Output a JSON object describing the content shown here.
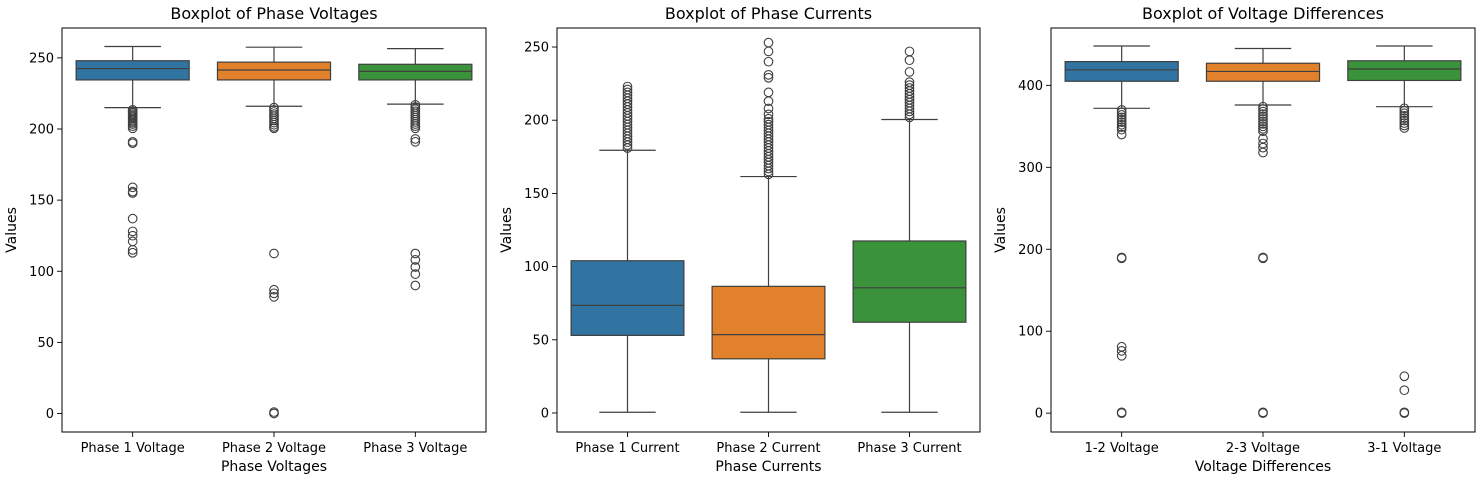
{
  "chart_data": [
    {
      "type": "boxplot",
      "title": "Boxplot of Phase Voltages",
      "xlabel": "Phase Voltages",
      "ylabel": "Values",
      "ylim": [
        -13,
        271
      ],
      "yticks": [
        0,
        50,
        100,
        150,
        200,
        250
      ],
      "grid": false,
      "categories": [
        "Phase 1 Voltage",
        "Phase 2 Voltage",
        "Phase 3 Voltage"
      ],
      "colors": [
        "#3274a1",
        "#e1812c",
        "#3a923a"
      ],
      "boxes": [
        {
          "whislo": 215,
          "q1": 234.5,
          "med": 242.5,
          "q3": 248,
          "whishi": 258,
          "fliers": [
            213.5,
            212.5,
            211.5,
            210.5,
            209.5,
            208.5,
            207.5,
            206.5,
            205.5,
            204.5,
            203.5,
            202,
            200.5,
            191,
            190,
            159,
            156,
            155,
            137,
            128,
            125,
            121,
            115,
            113
          ]
        },
        {
          "whislo": 216,
          "q1": 234.5,
          "med": 241.5,
          "q3": 247,
          "whishi": 257.5,
          "fliers": [
            215,
            213.5,
            212,
            210.5,
            209,
            207.5,
            206,
            204.5,
            203,
            201.5,
            200.5,
            112.5,
            87,
            84.5,
            82,
            1,
            0
          ]
        },
        {
          "whislo": 217.5,
          "q1": 234.5,
          "med": 240.5,
          "q3": 245.5,
          "whishi": 256.5,
          "fliers": [
            217,
            215.5,
            214,
            212.5,
            211,
            209.5,
            208,
            206.5,
            205,
            203.5,
            202,
            200.5,
            193,
            191,
            112.5,
            108,
            103,
            98,
            90
          ]
        }
      ]
    },
    {
      "type": "boxplot",
      "title": "Boxplot of Phase Currents",
      "xlabel": "Phase Currents",
      "ylabel": "Values",
      "ylim": [
        -13,
        263
      ],
      "yticks": [
        0,
        50,
        100,
        150,
        200,
        250
      ],
      "grid": false,
      "categories": [
        "Phase 1 Current",
        "Phase 2 Current",
        "Phase 3 Current"
      ],
      "colors": [
        "#3274a1",
        "#e1812c",
        "#3a923a"
      ],
      "boxes": [
        {
          "whislo": 0.5,
          "q1": 53,
          "med": 73.5,
          "q3": 104,
          "whishi": 179.5,
          "fliers": [
            181,
            183,
            185,
            187,
            189,
            191,
            193,
            195,
            197,
            199,
            201,
            203,
            205,
            207,
            209,
            211,
            213,
            215,
            217,
            219,
            221,
            223
          ]
        },
        {
          "whislo": 0.5,
          "q1": 37,
          "med": 53.5,
          "q3": 86.5,
          "whishi": 161.5,
          "fliers": [
            163,
            165,
            167,
            169,
            171,
            173,
            175,
            177,
            179,
            181,
            183,
            185,
            187,
            189,
            191,
            193,
            195,
            197,
            199,
            201,
            204,
            208,
            213,
            219,
            229,
            231,
            240,
            247,
            253
          ]
        },
        {
          "whislo": 0.5,
          "q1": 62,
          "med": 85.5,
          "q3": 117.5,
          "whishi": 200.5,
          "fliers": [
            202,
            204,
            206,
            208,
            210,
            212,
            214,
            216,
            218,
            220,
            222,
            224,
            226,
            233,
            241,
            247
          ]
        }
      ]
    },
    {
      "type": "boxplot",
      "title": "Boxplot of Voltage Differences",
      "xlabel": "Voltage Differences",
      "ylabel": "Values",
      "ylim": [
        -23,
        470
      ],
      "yticks": [
        0,
        100,
        200,
        300,
        400
      ],
      "grid": false,
      "categories": [
        "1-2 Voltage",
        "2-3 Voltage",
        "3-1 Voltage"
      ],
      "colors": [
        "#3274a1",
        "#e1812c",
        "#3a923a"
      ],
      "boxes": [
        {
          "whislo": 372,
          "q1": 405,
          "med": 419,
          "q3": 429,
          "whishi": 448,
          "fliers": [
            370,
            367,
            364,
            361,
            358,
            355,
            352,
            349,
            346,
            340,
            190,
            189,
            81,
            76,
            70,
            1,
            0
          ]
        },
        {
          "whislo": 376,
          "q1": 405,
          "med": 417,
          "q3": 427,
          "whishi": 445,
          "fliers": [
            374,
            371,
            368,
            365,
            362,
            359,
            356,
            353,
            350,
            347,
            344,
            335,
            329,
            324,
            318,
            190,
            189,
            1,
            0
          ]
        },
        {
          "whislo": 374,
          "q1": 406,
          "med": 420,
          "q3": 430,
          "whishi": 448,
          "fliers": [
            372,
            369,
            366,
            363,
            360,
            357,
            354,
            351,
            348,
            45,
            28,
            1,
            0
          ]
        }
      ]
    }
  ]
}
